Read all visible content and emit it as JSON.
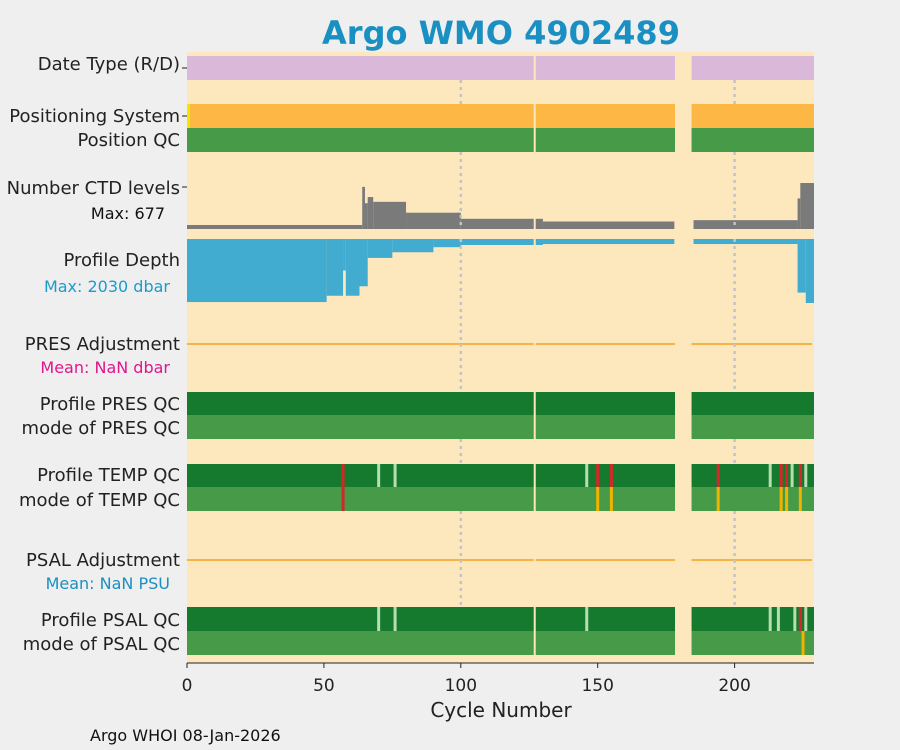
{
  "chart_data": {
    "type": "bar",
    "title": "Argo WMO 4902489",
    "xlabel": "Cycle Number",
    "xlim": [
      0,
      229
    ],
    "xticks": [
      0,
      50,
      100,
      150,
      200
    ],
    "grid_x": [
      100,
      200
    ],
    "gap_cycles": [
      179,
      185
    ],
    "row_labels": {
      "date_type": "Date Type (R/D)",
      "positioning": "Positioning System",
      "position_qc": "Position QC",
      "ctd_levels": "Number CTD levels",
      "ctd_max": "Max: 677",
      "profile_depth": "Profile Depth",
      "depth_max": "Max: 2030 dbar",
      "pres_adj": "PRES Adjustment",
      "pres_mean": "Mean:  NaN dbar",
      "pres_qc": "Profile PRES QC",
      "pres_mode": "mode of PRES QC",
      "temp_qc": "Profile TEMP QC",
      "temp_mode": "mode of TEMP QC",
      "psal_adj": "PSAL Adjustment",
      "psal_mean": "Mean:  NaN PSU",
      "psal_qc": "Profile PSAL QC",
      "psal_mode": "mode of PSAL QC"
    },
    "ctd_max_value": 677,
    "depth_max_value": 2030,
    "ctd_levels_segments": [
      {
        "from": 0,
        "to": 64,
        "value": 55
      },
      {
        "from": 64,
        "to": 65,
        "value": 620
      },
      {
        "from": 65,
        "to": 66,
        "value": 380
      },
      {
        "from": 66,
        "to": 68,
        "value": 470
      },
      {
        "from": 68,
        "to": 80,
        "value": 400
      },
      {
        "from": 80,
        "to": 100,
        "value": 240
      },
      {
        "from": 100,
        "to": 130,
        "value": 150
      },
      {
        "from": 130,
        "to": 178,
        "value": 110
      },
      {
        "from": 185,
        "to": 223,
        "value": 130
      },
      {
        "from": 223,
        "to": 224,
        "value": 450
      },
      {
        "from": 224,
        "to": 229,
        "value": 677
      }
    ],
    "profile_depth_segments": [
      {
        "from": 0,
        "to": 51,
        "value": 2000
      },
      {
        "from": 51,
        "to": 57,
        "value": 1800
      },
      {
        "from": 57,
        "to": 58,
        "value": 1000
      },
      {
        "from": 58,
        "to": 63,
        "value": 1800
      },
      {
        "from": 63,
        "to": 66,
        "value": 1500
      },
      {
        "from": 66,
        "to": 75,
        "value": 600
      },
      {
        "from": 75,
        "to": 90,
        "value": 420
      },
      {
        "from": 90,
        "to": 100,
        "value": 260
      },
      {
        "from": 100,
        "to": 130,
        "value": 190
      },
      {
        "from": 130,
        "to": 178,
        "value": 160
      },
      {
        "from": 185,
        "to": 223,
        "value": 160
      },
      {
        "from": 223,
        "to": 226,
        "value": 1700
      },
      {
        "from": 226,
        "to": 229,
        "value": 2030
      }
    ],
    "temp_qc_flags": [
      {
        "cycle": 57,
        "color": "#d42828"
      },
      {
        "cycle": 70,
        "color": "#b8ddb0"
      },
      {
        "cycle": 76,
        "color": "#b8ddb0"
      },
      {
        "cycle": 146,
        "color": "#b8ddb0"
      },
      {
        "cycle": 150,
        "color": "#d42828"
      },
      {
        "cycle": 155,
        "color": "#d42828"
      },
      {
        "cycle": 194,
        "color": "#d42828"
      },
      {
        "cycle": 213,
        "color": "#b8ddb0"
      },
      {
        "cycle": 217,
        "color": "#d42828"
      },
      {
        "cycle": 219,
        "color": "#d42828"
      },
      {
        "cycle": 221,
        "color": "#b8ddb0"
      },
      {
        "cycle": 224,
        "color": "#d42828"
      },
      {
        "cycle": 226,
        "color": "#b8ddb0"
      }
    ],
    "temp_mode_flags": [
      {
        "cycle": 57,
        "color": "#d42828"
      },
      {
        "cycle": 150,
        "color": "#f0b400"
      },
      {
        "cycle": 155,
        "color": "#f0b400"
      },
      {
        "cycle": 194,
        "color": "#f0b400"
      },
      {
        "cycle": 217,
        "color": "#f0b400"
      },
      {
        "cycle": 219,
        "color": "#f0b400"
      },
      {
        "cycle": 224,
        "color": "#f0b400"
      }
    ],
    "psal_qc_flags": [
      {
        "cycle": 70,
        "color": "#b8ddb0"
      },
      {
        "cycle": 76,
        "color": "#b8ddb0"
      },
      {
        "cycle": 146,
        "color": "#b8ddb0"
      },
      {
        "cycle": 213,
        "color": "#b8ddb0"
      },
      {
        "cycle": 216,
        "color": "#b8ddb0"
      },
      {
        "cycle": 222,
        "color": "#b8ddb0"
      },
      {
        "cycle": 224,
        "color": "#d42828"
      },
      {
        "cycle": 226,
        "color": "#b8ddb0"
      }
    ],
    "psal_mode_flags": [
      {
        "cycle": 225,
        "color": "#f0b400"
      }
    ]
  },
  "footer": "Argo WHOI 08-Jan-2026",
  "colors": {
    "background": "#fde8be",
    "date_type": "#dab8d9",
    "positioning": "#fdb744",
    "qc_good": "#157a2e",
    "mode_good": "#479a48",
    "ctd_bars": "#7a7a7a",
    "depth_bars": "#41abd0",
    "adjust_line": "#f6b448",
    "title": "#1a8fc2",
    "depth_max": "#1a9ccd",
    "pres_mean": "#e0168c",
    "psal_mean": "#1a8fc2"
  }
}
